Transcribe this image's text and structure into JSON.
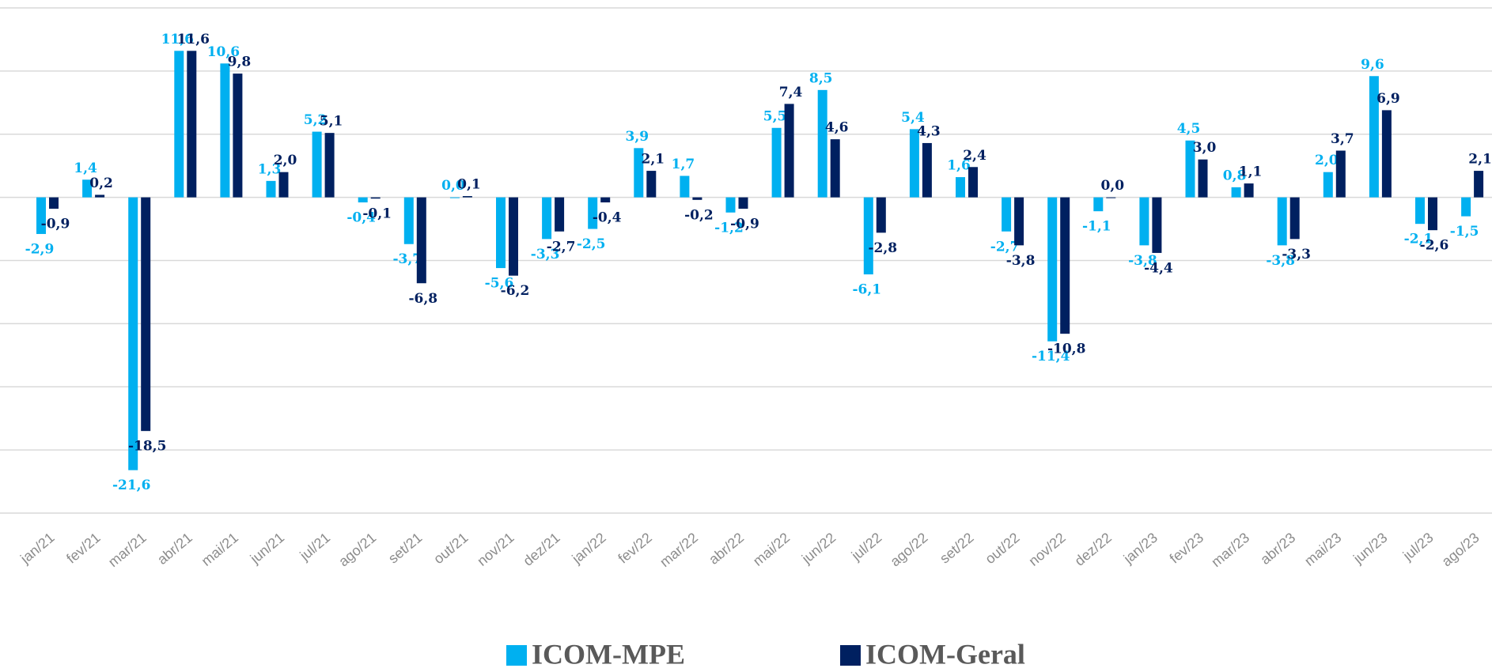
{
  "chart_data": {
    "type": "bar",
    "categories": [
      "jan/21",
      "fev/21",
      "mar/21",
      "abr/21",
      "mai/21",
      "jun/21",
      "jul/21",
      "ago/21",
      "set/21",
      "out/21",
      "nov/21",
      "dez/21",
      "jan/22",
      "fev/22",
      "mar/22",
      "abr/22",
      "mai/22",
      "jun/22",
      "jul/22",
      "ago/22",
      "set/22",
      "out/22",
      "nov/22",
      "dez/22",
      "jan/23",
      "fev/23",
      "mar/23",
      "abr/23",
      "mai/23",
      "jun/23",
      "jul/23",
      "ago/23"
    ],
    "series": [
      {
        "name": "ICOM-MPE",
        "color": "#00b0f0",
        "values": [
          -2.9,
          1.4,
          -21.6,
          11.6,
          10.6,
          1.3,
          5.2,
          -0.4,
          -3.7,
          0.0,
          -5.6,
          -3.3,
          -2.5,
          3.9,
          1.7,
          -1.2,
          5.5,
          8.5,
          -6.1,
          5.4,
          1.6,
          -2.7,
          -11.4,
          -1.1,
          -3.8,
          4.5,
          0.8,
          -3.8,
          2.0,
          9.6,
          -2.1,
          -1.5
        ],
        "value_labels": [
          "-2,9",
          "1,4",
          "-21,6",
          "11,6",
          "10,6",
          "1,3",
          "5,2",
          "-0,4",
          "-3,7",
          "0,0",
          "-5,6",
          "-3,3",
          "-2,5",
          "3,9",
          "1,7",
          "-1,2",
          "5,5",
          "8,5",
          "-6,1",
          "5,4",
          "1,6",
          "-2,7",
          "-11,4",
          "-1,1",
          "-3,8",
          "4,5",
          "0,8",
          "-3,8",
          "2,0",
          "9,6",
          "-2,1",
          "-1,5"
        ]
      },
      {
        "name": "ICOM-Geral",
        "color": "#002060",
        "values": [
          -0.9,
          0.2,
          -18.5,
          11.6,
          9.8,
          2.0,
          5.1,
          -0.1,
          -6.8,
          0.1,
          -6.2,
          -2.7,
          -0.4,
          2.1,
          -0.2,
          -0.9,
          7.4,
          4.6,
          -2.8,
          4.3,
          2.4,
          -3.8,
          -10.8,
          0.0,
          -4.4,
          3.0,
          1.1,
          -3.3,
          3.7,
          6.9,
          -2.6,
          2.1
        ],
        "value_labels": [
          "-0,9",
          "0,2",
          "-18,5",
          "11,6",
          "9,8",
          "2,0",
          "5,1",
          "-0,1",
          "-6,8",
          "0,1",
          "-6,2",
          "-2,7",
          "-0,4",
          "2,1",
          "-0,2",
          "-0,9",
          "7,4",
          "4,6",
          "-2,8",
          "4,3",
          "2,4",
          "-3,8",
          "-10,8",
          "0,0",
          "-4,4",
          "3,0",
          "1,1",
          "-3,3",
          "3,7",
          "6,9",
          "-2,6",
          "2,1"
        ]
      }
    ],
    "ylim": [
      -25,
      15
    ],
    "yticks": [
      -25,
      -20,
      -15,
      -10,
      -5,
      0,
      5,
      10,
      15
    ],
    "grid": true,
    "legend": "bottom"
  }
}
